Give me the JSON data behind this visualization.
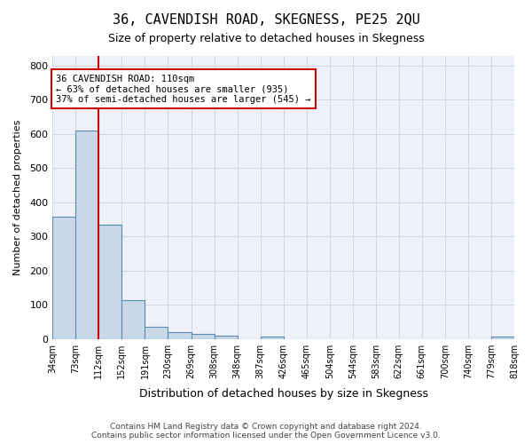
{
  "title": "36, CAVENDISH ROAD, SKEGNESS, PE25 2QU",
  "subtitle": "Size of property relative to detached houses in Skegness",
  "xlabel": "Distribution of detached houses by size in Skegness",
  "ylabel": "Number of detached properties",
  "footer_line1": "Contains HM Land Registry data © Crown copyright and database right 2024.",
  "footer_line2": "Contains public sector information licensed under the Open Government Licence v3.0.",
  "bin_labels": [
    "34sqm",
    "73sqm",
    "112sqm",
    "152sqm",
    "191sqm",
    "230sqm",
    "269sqm",
    "308sqm",
    "348sqm",
    "387sqm",
    "426sqm",
    "465sqm",
    "504sqm",
    "544sqm",
    "583sqm",
    "622sqm",
    "661sqm",
    "700sqm",
    "740sqm",
    "779sqm",
    "818sqm"
  ],
  "bar_values": [
    357,
    610,
    335,
    113,
    35,
    20,
    15,
    9,
    0,
    8,
    0,
    0,
    0,
    0,
    0,
    0,
    0,
    0,
    0,
    8
  ],
  "bar_color": "#c8d8e8",
  "bar_edge_color": "#5a8ab0",
  "property_line_x": 2.0,
  "property_line_color": "#cc0000",
  "annotation_text": "36 CAVENDISH ROAD: 110sqm\n← 63% of detached houses are smaller (935)\n37% of semi-detached houses are larger (545) →",
  "annotation_box_color": "white",
  "annotation_box_edge_color": "#cc0000",
  "ylim": [
    0,
    830
  ],
  "yticks": [
    0,
    100,
    200,
    300,
    400,
    500,
    600,
    700,
    800
  ],
  "grid_color": "#d0d8e8",
  "background_color": "#eef2f8"
}
